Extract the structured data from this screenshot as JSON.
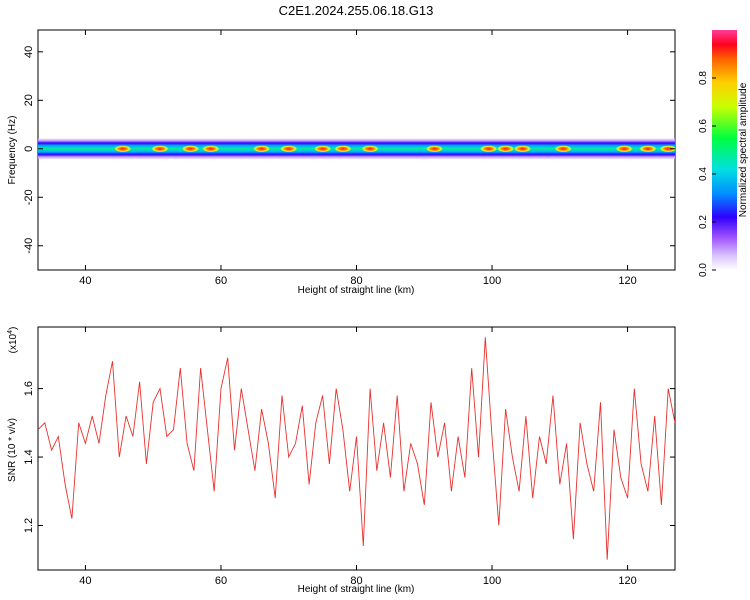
{
  "title": "C2E1.2024.255.06.18.G13",
  "chart_data": [
    {
      "type": "heatmap",
      "xlabel": "Height of straight line (km)",
      "ylabel": "Frequency (Hz)",
      "xlim": [
        33,
        127
      ],
      "ylim": [
        -50,
        49
      ],
      "xticks": [
        40,
        60,
        80,
        100,
        120
      ],
      "yticks": [
        -40,
        -20,
        0,
        20,
        40
      ],
      "band_center_hz": 0,
      "band_halfwidth_hz": 3,
      "hotspots_km": [
        45.5,
        51,
        55.5,
        58.5,
        66,
        70,
        75,
        78,
        82,
        91.5,
        99.5,
        102,
        104.5,
        110.5,
        119.5,
        123,
        126
      ],
      "colorbar": {
        "label": "Normalized spectral amplitude",
        "range": [
          0,
          1
        ],
        "ticks": [
          0.0,
          0.2,
          0.4,
          0.6,
          0.8
        ],
        "tick_labels": [
          "0.0",
          "0.2",
          "0.4",
          "0.6",
          "0.8"
        ]
      }
    },
    {
      "type": "line",
      "xlabel": "Height of straight line (km)",
      "ylabel": "SNR (10 * v/v)",
      "exponent_label": "(x10",
      "exponent": "4",
      "xlim": [
        33,
        127
      ],
      "ylim": [
        1.07,
        1.78
      ],
      "xticks": [
        40,
        60,
        80,
        100,
        120
      ],
      "yticks": [
        1.2,
        1.4,
        1.6
      ],
      "ytick_labels": [
        "1.2",
        "1.4",
        "1.6"
      ],
      "color": "#e8312e",
      "x": [
        33,
        34,
        35,
        36,
        37,
        38,
        39,
        40,
        41,
        42,
        43,
        44,
        45,
        46,
        47,
        48,
        49,
        50,
        51,
        52,
        53,
        54,
        55,
        56,
        57,
        58,
        59,
        60,
        61,
        62,
        63,
        64,
        65,
        66,
        67,
        68,
        69,
        70,
        71,
        72,
        73,
        74,
        75,
        76,
        77,
        78,
        79,
        80,
        81,
        82,
        83,
        84,
        85,
        86,
        87,
        88,
        89,
        90,
        91,
        92,
        93,
        94,
        95,
        96,
        97,
        98,
        99,
        100,
        101,
        102,
        103,
        104,
        105,
        106,
        107,
        108,
        109,
        110,
        111,
        112,
        113,
        114,
        115,
        116,
        117,
        118,
        119,
        120,
        121,
        122,
        123,
        124,
        125,
        126,
        127
      ],
      "y": [
        1.48,
        1.5,
        1.42,
        1.46,
        1.32,
        1.22,
        1.5,
        1.44,
        1.52,
        1.44,
        1.58,
        1.68,
        1.4,
        1.52,
        1.46,
        1.62,
        1.38,
        1.56,
        1.6,
        1.46,
        1.48,
        1.66,
        1.44,
        1.36,
        1.66,
        1.48,
        1.3,
        1.6,
        1.69,
        1.42,
        1.6,
        1.48,
        1.36,
        1.54,
        1.44,
        1.28,
        1.58,
        1.4,
        1.44,
        1.55,
        1.32,
        1.5,
        1.58,
        1.38,
        1.6,
        1.48,
        1.3,
        1.46,
        1.14,
        1.6,
        1.36,
        1.5,
        1.34,
        1.58,
        1.3,
        1.44,
        1.38,
        1.26,
        1.56,
        1.4,
        1.5,
        1.3,
        1.46,
        1.34,
        1.66,
        1.4,
        1.75,
        1.46,
        1.2,
        1.54,
        1.4,
        1.3,
        1.52,
        1.28,
        1.46,
        1.38,
        1.58,
        1.32,
        1.44,
        1.16,
        1.5,
        1.38,
        1.3,
        1.56,
        1.1,
        1.48,
        1.34,
        1.28,
        1.6,
        1.38,
        1.3,
        1.52,
        1.26,
        1.6,
        1.5
      ]
    }
  ]
}
